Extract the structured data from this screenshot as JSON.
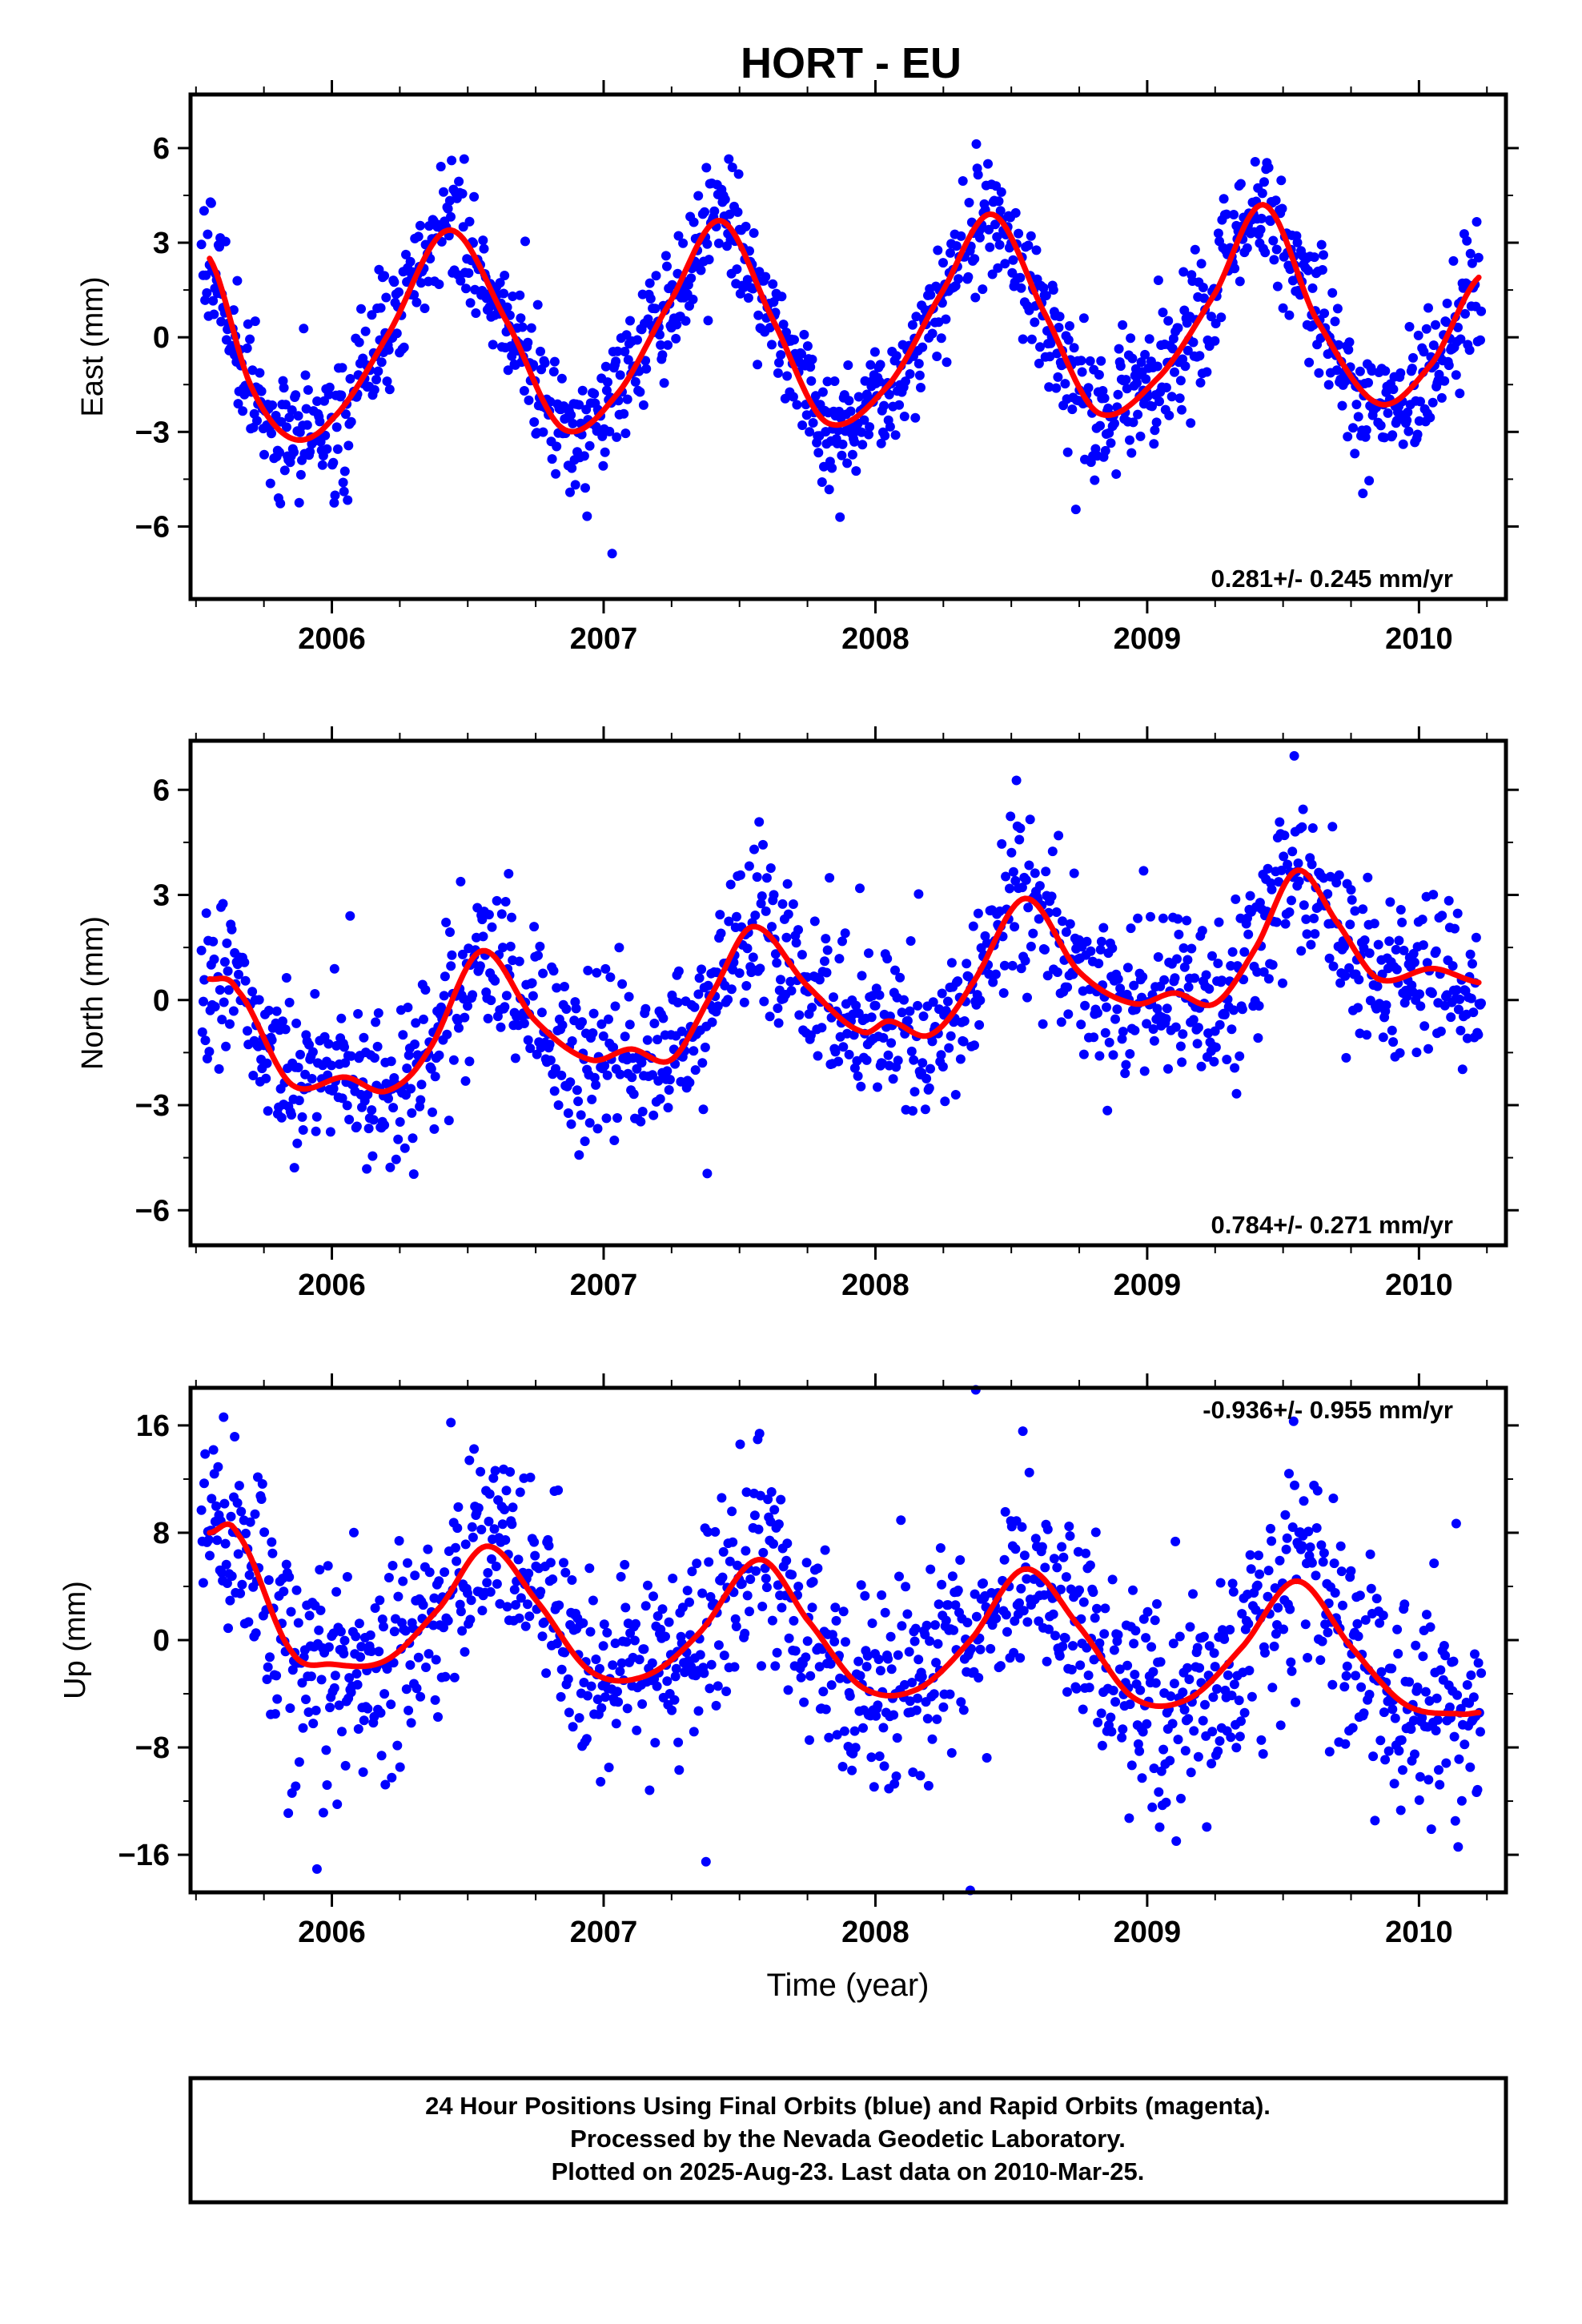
{
  "title": "HORT - EU",
  "xlabel": "Time (year)",
  "footer": {
    "lines": [
      "24 Hour Positions Using Final Orbits (blue) and Rapid Orbits (magenta).",
      "Processed by the Nevada Geodetic Laboratory.",
      "Plotted on 2025-Aug-23. Last data on 2010-Mar-25."
    ]
  },
  "colors": {
    "points": "#0000ff",
    "fit": "#ff0000",
    "frame": "#000000"
  },
  "chart_data": [
    {
      "type": "scatter",
      "component": "east",
      "ylabel": "East (mm)",
      "rate_label": "0.281+/- 0.245 mm/yr",
      "xlim": [
        2005.48,
        2010.32
      ],
      "ylim": [
        -8.3,
        7.7
      ],
      "yticks": [
        6,
        3,
        0,
        -3,
        -6
      ],
      "ytick_labels": [
        "6",
        "3",
        "0",
        "−3",
        "−6"
      ],
      "xticks": [
        2006,
        2007,
        2008,
        2009,
        2010
      ],
      "xtick_labels": [
        "2006",
        "2007",
        "2008",
        "2009",
        "2010"
      ],
      "fit": {
        "name": "",
        "x": [
          2005.55,
          2005.7,
          2005.85,
          2006.0,
          2006.2,
          2006.43,
          2006.65,
          2006.85,
          2007.05,
          2007.25,
          2007.43,
          2007.62,
          2007.82,
          2008.05,
          2008.25,
          2008.43,
          2008.62,
          2008.82,
          2009.05,
          2009.25,
          2009.43,
          2009.62,
          2009.85,
          2010.05,
          2010.22
        ],
        "y": [
          2.5,
          -1.5,
          -3.2,
          -2.6,
          0.0,
          3.4,
          0.4,
          -2.9,
          -1.8,
          1.2,
          3.7,
          0.6,
          -2.7,
          -1.5,
          1.5,
          3.9,
          0.8,
          -2.4,
          -1.2,
          1.4,
          4.2,
          0.6,
          -2.1,
          -0.8,
          1.9
        ]
      },
      "sampling": {
        "start": 2005.52,
        "end": 2010.23,
        "step": 0.0033,
        "noise_sd": 1.0,
        "outlier_sd": 2.2
      }
    },
    {
      "type": "scatter",
      "component": "north",
      "ylabel": "North (mm)",
      "rate_label": "0.784+/- 0.271 mm/yr",
      "xlim": [
        2005.48,
        2010.32
      ],
      "ylim": [
        -7.0,
        7.4
      ],
      "yticks": [
        6,
        3,
        0,
        -3,
        -6
      ],
      "ytick_labels": [
        "6",
        "3",
        "0",
        "−3",
        "−6"
      ],
      "xticks": [
        2006,
        2007,
        2008,
        2009,
        2010
      ],
      "xtick_labels": [
        "2006",
        "2007",
        "2008",
        "2009",
        "2010"
      ],
      "fit": {
        "name": "",
        "x": [
          2005.55,
          2005.65,
          2005.85,
          2006.05,
          2006.2,
          2006.35,
          2006.55,
          2006.75,
          2006.95,
          2007.1,
          2007.25,
          2007.4,
          2007.55,
          2007.75,
          2007.95,
          2008.05,
          2008.2,
          2008.35,
          2008.55,
          2008.75,
          2008.95,
          2009.1,
          2009.25,
          2009.4,
          2009.55,
          2009.7,
          2009.85,
          2010.05,
          2010.22
        ],
        "y": [
          0.6,
          0.3,
          -2.4,
          -2.2,
          -2.6,
          -1.5,
          1.4,
          -0.6,
          -1.7,
          -1.4,
          -1.7,
          0.2,
          2.1,
          0.4,
          -0.9,
          -0.6,
          -1.0,
          0.4,
          2.9,
          0.8,
          -0.1,
          0.2,
          -0.1,
          1.5,
          3.7,
          2.2,
          0.6,
          0.9,
          0.5
        ]
      },
      "sampling": {
        "start": 2005.52,
        "end": 2010.23,
        "step": 0.0036,
        "noise_sd": 1.15,
        "outlier_sd": 2.5
      }
    },
    {
      "type": "scatter",
      "component": "up",
      "ylabel": "Up (mm)",
      "rate_label": "-0.936+/- 0.955 mm/yr",
      "xlim": [
        2005.48,
        2010.32
      ],
      "ylim": [
        -18.8,
        18.8
      ],
      "yticks": [
        16,
        8,
        0,
        -8,
        -16
      ],
      "ytick_labels": [
        "16",
        "8",
        "0",
        "−8",
        "−16"
      ],
      "xticks": [
        2006,
        2007,
        2008,
        2009,
        2010
      ],
      "xtick_labels": [
        "2006",
        "2007",
        "2008",
        "2009",
        "2010"
      ],
      "fit": {
        "name": "",
        "x": [
          2005.55,
          2005.65,
          2005.85,
          2006.0,
          2006.2,
          2006.4,
          2006.57,
          2006.75,
          2006.95,
          2007.15,
          2007.35,
          2007.57,
          2007.75,
          2007.95,
          2008.15,
          2008.35,
          2008.55,
          2008.75,
          2008.95,
          2009.15,
          2009.35,
          2009.55,
          2009.75,
          2009.95,
          2010.15,
          2010.22
        ],
        "y": [
          8.0,
          8.0,
          -0.8,
          -1.8,
          -1.5,
          2.5,
          7.0,
          3.0,
          -2.3,
          -2.7,
          0.5,
          6.0,
          1.5,
          -3.5,
          -3.7,
          0.0,
          5.3,
          1.0,
          -4.3,
          -4.4,
          -0.5,
          4.4,
          -0.5,
          -4.8,
          -5.5,
          -5.4
        ]
      },
      "sampling": {
        "start": 2005.52,
        "end": 2010.23,
        "step": 0.0034,
        "noise_sd": 3.9,
        "outlier_sd": 7.0
      }
    }
  ]
}
